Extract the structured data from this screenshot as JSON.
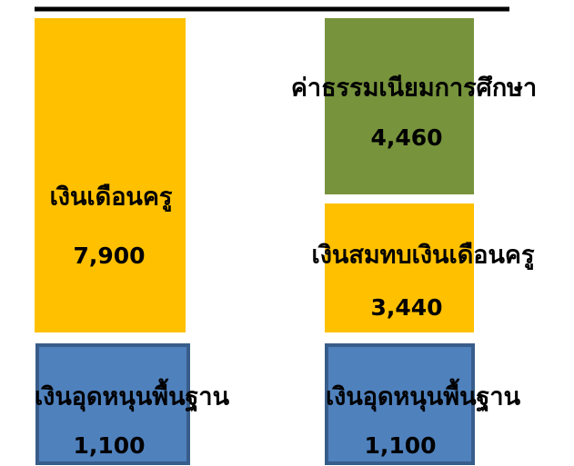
{
  "columns": [
    {
      "segments": [
        {
          "label": "เงินอุดหนุนพื้นฐาน",
          "amount": "1,100"
        },
        {
          "label": "เงินเดือนครู",
          "amount": "7,900"
        }
      ]
    },
    {
      "segments": [
        {
          "label": "เงินอุดหนุนพื้นฐาน",
          "amount": "1,100"
        },
        {
          "label": "เงินสมทบเงินเดือนครู",
          "amount": "3,440"
        },
        {
          "label": "ค่าธรรมเนียมการศึกษา",
          "amount": "4,460"
        }
      ]
    }
  ]
}
